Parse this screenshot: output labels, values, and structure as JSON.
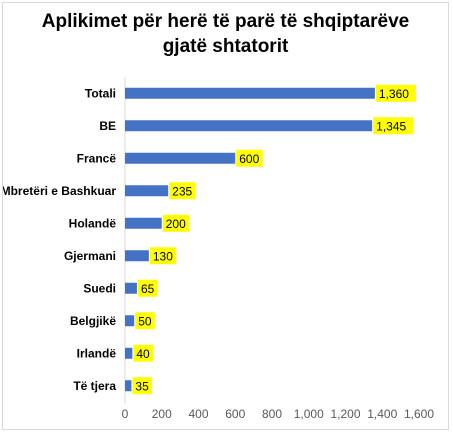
{
  "chart_data": {
    "type": "bar",
    "orientation": "horizontal",
    "title_lines": [
      "Aplikimet për herë të parë të shqiptarëve",
      "gjatë shtatorit"
    ],
    "categories": [
      "Totali",
      "BE",
      "Francë",
      "Mbretëri e Bashkuar",
      "Holandë",
      "Gjermani",
      "Suedi",
      "Belgjikë",
      "Irlandë",
      "Të tjera"
    ],
    "values": [
      1360,
      1345,
      600,
      235,
      200,
      130,
      65,
      50,
      40,
      35
    ],
    "data_labels": [
      "1,360",
      "1,345",
      "600",
      "235",
      "200",
      "130",
      "65",
      "50",
      "40",
      "35"
    ],
    "x_ticks": [
      "0",
      "200",
      "400",
      "600",
      "800",
      "1,000",
      "1,200",
      "1,400",
      "1,600"
    ],
    "xlim": [
      0,
      1600
    ],
    "grid": false,
    "legend": "none",
    "colors": {
      "bar": "#4472c4",
      "label_highlight": "#ffff00",
      "axis": "#d9d9d9"
    }
  }
}
